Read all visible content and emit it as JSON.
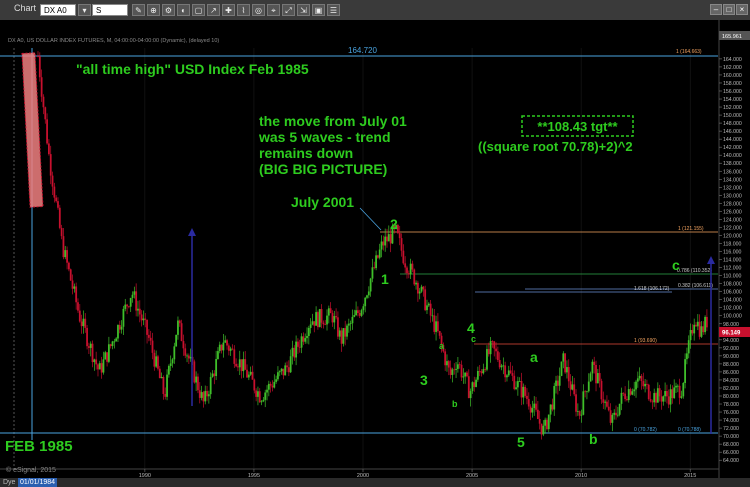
{
  "window": {
    "title": "Chart",
    "symbol": "DX A0",
    "interval": "S",
    "series_info": "DX A0, US DOLLAR INDEX FUTURES, M, 04:00:00-04:00:00 (Dynamic), (delayed 10)"
  },
  "toolbar": {
    "buttons": [
      "✎",
      "⊕",
      "⚙",
      "◐",
      "▢",
      "↗",
      "✚",
      "⌇",
      "◎",
      "⌖",
      "⤢",
      "⇲",
      "▣",
      "☰"
    ]
  },
  "price_axis": {
    "labels": [
      "164.000",
      "162.000",
      "160.000",
      "158.000",
      "156.000",
      "154.000",
      "152.000",
      "150.000",
      "148.000",
      "146.000",
      "144.000",
      "142.000",
      "140.000",
      "138.000",
      "136.000",
      "134.000",
      "132.000",
      "130.000",
      "128.000",
      "126.000",
      "124.000",
      "122.000",
      "120.000",
      "118.000",
      "116.000",
      "114.000",
      "112.000",
      "110.000",
      "108.000",
      "106.000",
      "104.000",
      "102.000",
      "100.000",
      "98.000",
      "96.000",
      "94.000",
      "92.000",
      "90.000",
      "88.000",
      "86.000",
      "84.000",
      "82.000",
      "80.000",
      "78.000",
      "76.000",
      "74.000",
      "72.000",
      "70.000",
      "68.000",
      "66.000",
      "64.000",
      "62.000"
    ],
    "current_price": "96.149",
    "top_readout": "165.961"
  },
  "time_axis": {
    "labels": [
      "1990",
      "1995",
      "2000",
      "2005",
      "2010",
      "2015"
    ],
    "cursor_date": "01/01/1984"
  },
  "chart_data": {
    "type": "ohlc",
    "candles_monthly_1984_2015": "dollar index decline from 164.72 (Feb 1985) to 78 (1992), rally to 121 (July 2001), decline to 70.78 (2008), rally to ~100 (2015)",
    "ylim": [
      61,
      166
    ],
    "levels": [
      {
        "value": 164.72,
        "label": "164.720",
        "right_label": "1 (164.663)"
      },
      {
        "value": 121.15,
        "right_label": "1 (121.155)"
      },
      {
        "value": 110.35,
        "right_label": "0.786 (110.352)"
      },
      {
        "value": 106.61,
        "right_label": "0.382 (106.611)"
      },
      {
        "value": 106.17,
        "right_label": "1.618 (106.172)"
      },
      {
        "value": 93.69,
        "right_label": "1 (93.690)"
      },
      {
        "value": 70.78,
        "left_label": "0 (70.782)",
        "right_label": "0 (70.788)"
      }
    ]
  },
  "annotations": {
    "ath": "\"all time high\" USD Index Feb 1985",
    "move1": "the move from July 01",
    "move2": "was 5 waves - trend",
    "move3": "remains down",
    "move4": "(BIG BIG PICTURE)",
    "july2001": "July 2001",
    "feb1985": "FEB 1985",
    "target": "**108.43 tgt**",
    "formula": "((square root 70.78)+2)^2",
    "waves": {
      "w1": "1",
      "w2": "2",
      "w3": "3",
      "w4": "4",
      "w5": "5",
      "wa1": "a",
      "wb1": "b",
      "wc1": "c",
      "wa2": "a",
      "wb2": "b",
      "wc2": "c"
    }
  },
  "status": {
    "left": "Dye",
    "date": "01/01/1984",
    "copyright": "© eSignal, 2015"
  },
  "colors": {
    "up": "#3fbf2a",
    "down": "#c8102e",
    "text_green": "#2ecc1f",
    "level_orange": "#f4a460",
    "level_blue": "#6b8fd6",
    "level_green": "#2ea84a",
    "level_red": "#e74c3c",
    "axis_blue": "#4aa3df"
  }
}
